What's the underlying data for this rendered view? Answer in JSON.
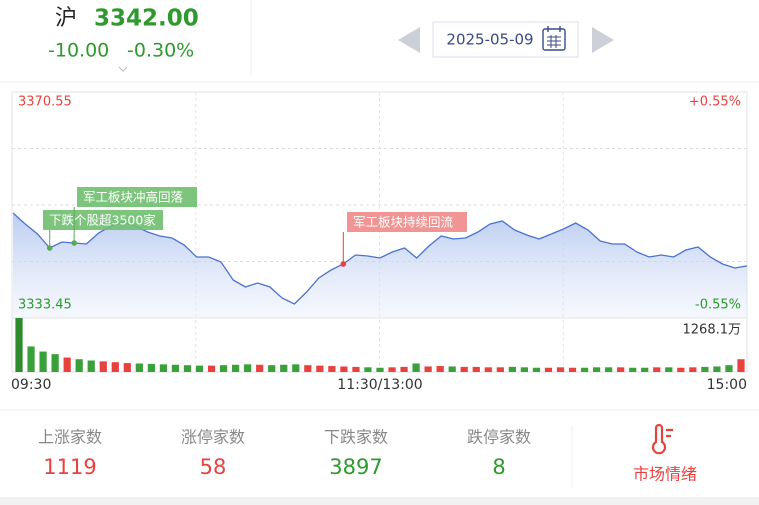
{
  "header": {
    "index_name": "沪",
    "price": "3342.00",
    "change": "-10.00",
    "change_pct": "-0.30%"
  },
  "date": "2025-05-09",
  "chart_data": [
    {
      "type": "line",
      "color": "#4a72d0",
      "values": [
        3350.69,
        3348.88,
        3347.24,
        3344.94,
        3345.93,
        3345.76,
        3345.6,
        3347.4,
        3348.55,
        3349.21,
        3348.55,
        3347.57,
        3346.91,
        3346.58,
        3345.43,
        3343.46,
        3343.46,
        3342.64,
        3339.69,
        3338.54,
        3339.2,
        3338.54,
        3336.73,
        3335.75,
        3337.72,
        3340.02,
        3341.33,
        3342.31,
        3343.79,
        3343.63,
        3343.3,
        3344.28,
        3344.94,
        3343.3,
        3345.27,
        3346.91,
        3346.42,
        3346.58,
        3347.57,
        3348.88,
        3349.37,
        3347.9,
        3347.08,
        3346.42,
        3347.24,
        3348.06,
        3349.05,
        3347.9,
        3346.09,
        3345.6,
        3345.6,
        3344.28,
        3343.46,
        3343.79,
        3343.46,
        3344.61,
        3345.11,
        3343.46,
        3342.31,
        3341.66,
        3342.0
      ],
      "ylim": [
        3333.45,
        3370.55
      ],
      "yticks": [
        3370.55,
        3333.45
      ],
      "y2lim": [
        -0.55,
        0.55
      ],
      "y2ticks": [
        {
          "value": 0.55,
          "label": "+0.55%"
        },
        {
          "value": -0.55,
          "label": "-0.55%"
        }
      ],
      "x_tick_labels": [
        "09:30",
        "11:30/13:00",
        "15:00"
      ],
      "annotations": [
        "下跌个股超3500家",
        "军工板块冲高回落",
        "军工板块持续回流"
      ]
    },
    {
      "type": "bar",
      "values": [
        1268,
        600,
        480,
        420,
        340,
        300,
        270,
        250,
        230,
        210,
        200,
        190,
        180,
        170,
        160,
        150,
        150,
        160,
        170,
        180,
        170,
        160,
        170,
        180,
        160,
        150,
        140,
        130,
        120,
        110,
        100,
        110,
        120,
        200,
        130,
        140,
        130,
        120,
        120,
        110,
        110,
        120,
        110,
        100,
        100,
        110,
        100,
        100,
        110,
        110,
        110,
        100,
        100,
        110,
        110,
        100,
        110,
        120,
        130,
        160,
        300
      ],
      "colors": [
        "#2e8b2e",
        "#3aa13a",
        "#3aa13a",
        "#3aa13a",
        "#e8423f",
        "#3aa13a",
        "#3aa13a",
        "#e8423f",
        "#e8423f",
        "#e8423f",
        "#3aa13a",
        "#3aa13a",
        "#3aa13a",
        "#3aa13a",
        "#3aa13a",
        "#3aa13a",
        "#e8423f",
        "#3aa13a",
        "#3aa13a",
        "#3aa13a",
        "#e8423f",
        "#3aa13a",
        "#3aa13a",
        "#3aa13a",
        "#e8423f",
        "#e8423f",
        "#e8423f",
        "#e8423f",
        "#e8423f",
        "#3aa13a",
        "#3aa13a",
        "#e8423f",
        "#e8423f",
        "#3aa13a",
        "#e8423f",
        "#e8423f",
        "#3aa13a",
        "#e8423f",
        "#e8423f",
        "#e8423f",
        "#e8423f",
        "#3aa13a",
        "#3aa13a",
        "#3aa13a",
        "#e8423f",
        "#e8423f",
        "#e8423f",
        "#3aa13a",
        "#3aa13a",
        "#3aa13a",
        "#e8423f",
        "#3aa13a",
        "#3aa13a",
        "#e8423f",
        "#3aa13a",
        "#e8423f",
        "#e8423f",
        "#3aa13a",
        "#3aa13a",
        "#3aa13a",
        "#e8423f"
      ],
      "ylim": [
        0,
        1268.1
      ],
      "yticks": [
        {
          "value": 1268.1,
          "label": "1268.1万"
        }
      ]
    }
  ],
  "stats": [
    {
      "label": "上涨家数",
      "value": 1119
    },
    {
      "label": "涨停家数",
      "value": 58
    },
    {
      "label": "下跌家数",
      "value": 3897
    },
    {
      "label": "跌停家数",
      "value": 8
    }
  ],
  "sentiment": "市场情绪"
}
